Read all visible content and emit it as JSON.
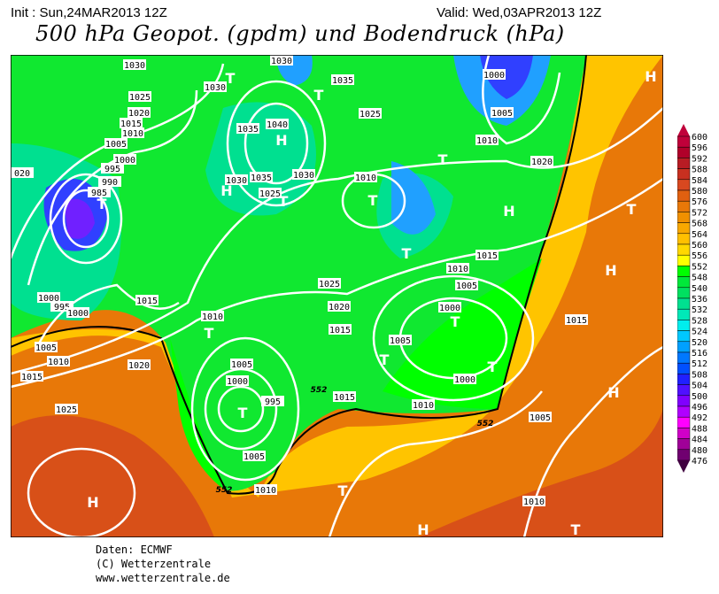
{
  "header": {
    "init": "Init : Sun,24MAR2013 12Z",
    "valid": "Valid: Wed,03APR2013 12Z",
    "title": "500 hPa Geopot. (gpdm) und Bodendruck (hPa)"
  },
  "footer": {
    "data": "Daten: ECMWF",
    "copyright": "(C) Wetterzentrale",
    "url": "www.wetterzentrale.de"
  },
  "colorbar": {
    "labels": [
      "600",
      "596",
      "592",
      "588",
      "584",
      "580",
      "576",
      "572",
      "568",
      "564",
      "560",
      "556",
      "552",
      "548",
      "540",
      "536",
      "532",
      "528",
      "524",
      "520",
      "516",
      "512",
      "508",
      "504",
      "500",
      "496",
      "492",
      "488",
      "484",
      "480",
      "476"
    ],
    "colors": [
      "#c0003a",
      "#b0002a",
      "#b81c24",
      "#c83020",
      "#d84820",
      "#e06010",
      "#e87808",
      "#f09000",
      "#f8a800",
      "#ffc000",
      "#ffd800",
      "#ffff00",
      "#00ff00",
      "#00e83a",
      "#00e060",
      "#00e090",
      "#00e8b8",
      "#00eeee",
      "#00c8ff",
      "#00a0ff",
      "#0078ff",
      "#0050ff",
      "#2020ff",
      "#5010ff",
      "#8000ff",
      "#b000ff",
      "#ff00ff",
      "#d000c8",
      "#a00098",
      "#700070"
    ]
  },
  "map": {
    "isobar_labels": [
      "1030",
      "1030",
      "1030",
      "1025",
      "1020",
      "1015",
      "1010",
      "1005",
      "1000",
      "995",
      "990",
      "985",
      "020",
      "1040",
      "1035",
      "1030",
      "1035",
      "1025",
      "1030",
      "1035",
      "1025",
      "1000",
      "1005",
      "1010",
      "1010",
      "1020",
      "1015",
      "1010",
      "1005",
      "1000",
      "1025",
      "1020",
      "1015",
      "1005",
      "1000",
      "1010",
      "1015",
      "1005",
      "1015",
      "1010",
      "1000",
      "995",
      "1000",
      "1015",
      "1010",
      "1005",
      "1010",
      "1015",
      "1020",
      "1025",
      "1005",
      "1000",
      "995",
      "1005",
      "1010"
    ],
    "high_label": "H",
    "low_label": "T",
    "geopot_labels": [
      "552",
      "552",
      "552"
    ]
  }
}
